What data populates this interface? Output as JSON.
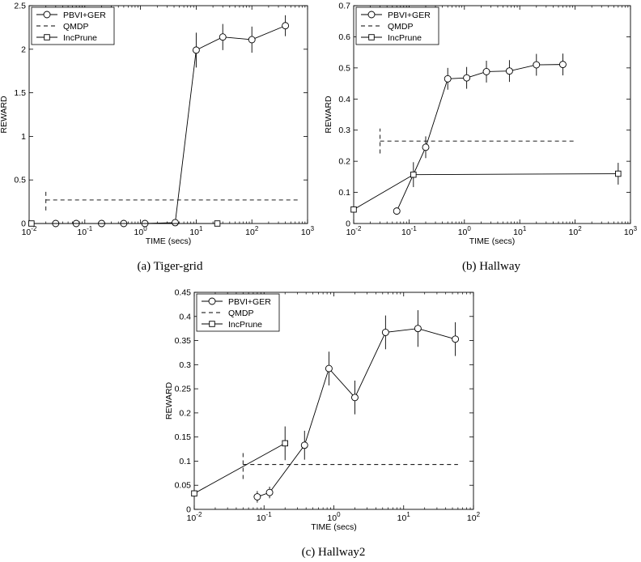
{
  "chart_data": [
    {
      "type": "line",
      "caption": "(a)  Tiger-grid",
      "xlabel": "TIME (secs)",
      "ylabel": "REWARD",
      "xscale": "log",
      "xlim": [
        0.01,
        1000
      ],
      "ylim": [
        0,
        2.5
      ],
      "xticks": [
        0.01,
        0.1,
        1,
        10,
        100,
        1000
      ],
      "yticks": [
        0,
        0.5,
        1,
        1.5,
        2,
        2.5
      ],
      "ytick_labels": [
        "0",
        "0.5",
        "1",
        "1.5",
        "2",
        "2.5"
      ],
      "legend_position": "top-left",
      "series": [
        {
          "name": "PBVI+GER",
          "style": "solid",
          "marker": "circle",
          "points": [
            {
              "x": 0.03,
              "y": 0.0
            },
            {
              "x": 0.07,
              "y": 0.0
            },
            {
              "x": 0.2,
              "y": 0.0
            },
            {
              "x": 0.5,
              "y": 0.0
            },
            {
              "x": 1.2,
              "y": 0.0
            },
            {
              "x": 4.2,
              "y": 0.01
            },
            {
              "x": 10,
              "y": 1.99,
              "err": 0.2
            },
            {
              "x": 30,
              "y": 2.14,
              "err": 0.15
            },
            {
              "x": 100,
              "y": 2.11,
              "err": 0.15
            },
            {
              "x": 400,
              "y": 2.27,
              "err": 0.12
            }
          ]
        },
        {
          "name": "QMDP",
          "style": "dashed",
          "marker": "none",
          "points": [
            {
              "x": 0.02,
              "y": 0.27,
              "err": 0.12
            },
            {
              "x": 700,
              "y": 0.27
            }
          ]
        },
        {
          "name": "IncPrune",
          "style": "solid",
          "marker": "square",
          "points": [
            {
              "x": 0.011,
              "y": 0.0
            },
            {
              "x": 24,
              "y": 0.0
            }
          ]
        }
      ]
    },
    {
      "type": "line",
      "caption": "(b)  Hallway",
      "xlabel": "TIME (secs)",
      "ylabel": "REWARD",
      "xscale": "log",
      "xlim": [
        0.01,
        1000
      ],
      "ylim": [
        0,
        0.7
      ],
      "xticks": [
        0.01,
        0.1,
        1,
        10,
        100,
        1000
      ],
      "yticks": [
        0,
        0.1,
        0.2,
        0.3,
        0.4,
        0.5,
        0.6,
        0.7
      ],
      "ytick_labels": [
        "0",
        "0.1",
        "0.2",
        "0.3",
        "0.4",
        "0.5",
        "0.6",
        "0.7"
      ],
      "legend_position": "top-left",
      "series": [
        {
          "name": "PBVI+GER",
          "style": "solid",
          "marker": "circle",
          "points": [
            {
              "x": 0.06,
              "y": 0.04
            },
            {
              "x": 0.2,
              "y": 0.245,
              "err": 0.035
            },
            {
              "x": 0.5,
              "y": 0.465,
              "err": 0.035
            },
            {
              "x": 1.1,
              "y": 0.468,
              "err": 0.035
            },
            {
              "x": 2.5,
              "y": 0.488,
              "err": 0.035
            },
            {
              "x": 6.5,
              "y": 0.49,
              "err": 0.035
            },
            {
              "x": 20,
              "y": 0.51,
              "err": 0.035
            },
            {
              "x": 60,
              "y": 0.511,
              "err": 0.035
            }
          ]
        },
        {
          "name": "QMDP",
          "style": "dashed",
          "marker": "none",
          "points": [
            {
              "x": 0.03,
              "y": 0.265,
              "err": 0.04
            },
            {
              "x": 100,
              "y": 0.265
            }
          ]
        },
        {
          "name": "IncPrune",
          "style": "solid",
          "marker": "square",
          "points": [
            {
              "x": 0.01,
              "y": 0.045
            },
            {
              "x": 0.12,
              "y": 0.157,
              "err": 0.04
            },
            {
              "x": 600,
              "y": 0.16,
              "err": 0.035
            }
          ]
        }
      ]
    },
    {
      "type": "line",
      "caption": "(c)  Hallway2",
      "xlabel": "TIME (secs)",
      "ylabel": "REWARD",
      "xscale": "log",
      "xlim": [
        0.01,
        100
      ],
      "ylim": [
        0,
        0.45
      ],
      "xticks": [
        0.01,
        0.1,
        1,
        10,
        100
      ],
      "yticks": [
        0,
        0.05,
        0.1,
        0.15,
        0.2,
        0.25,
        0.3,
        0.35,
        0.4,
        0.45
      ],
      "ytick_labels": [
        "0",
        "0.05",
        "0.1",
        "0.15",
        "0.2",
        "0.25",
        "0.3",
        "0.35",
        "0.4",
        "0.45"
      ],
      "legend_position": "top-left",
      "series": [
        {
          "name": "PBVI+GER",
          "style": "solid",
          "marker": "circle",
          "points": [
            {
              "x": 0.08,
              "y": 0.026,
              "err": 0.012
            },
            {
              "x": 0.12,
              "y": 0.035,
              "err": 0.012
            },
            {
              "x": 0.38,
              "y": 0.133,
              "err": 0.03
            },
            {
              "x": 0.85,
              "y": 0.292,
              "err": 0.035
            },
            {
              "x": 2,
              "y": 0.232,
              "err": 0.035
            },
            {
              "x": 5.5,
              "y": 0.367,
              "err": 0.035
            },
            {
              "x": 16,
              "y": 0.375,
              "err": 0.038
            },
            {
              "x": 55,
              "y": 0.353,
              "err": 0.035
            }
          ]
        },
        {
          "name": "QMDP",
          "style": "dashed",
          "marker": "none",
          "points": [
            {
              "x": 0.05,
              "y": 0.093,
              "err": 0.03
            },
            {
              "x": 60,
              "y": 0.093
            }
          ]
        },
        {
          "name": "IncPrune",
          "style": "solid",
          "marker": "square",
          "points": [
            {
              "x": 0.01,
              "y": 0.033
            },
            {
              "x": 0.2,
              "y": 0.137,
              "err": 0.035
            }
          ]
        }
      ]
    }
  ]
}
